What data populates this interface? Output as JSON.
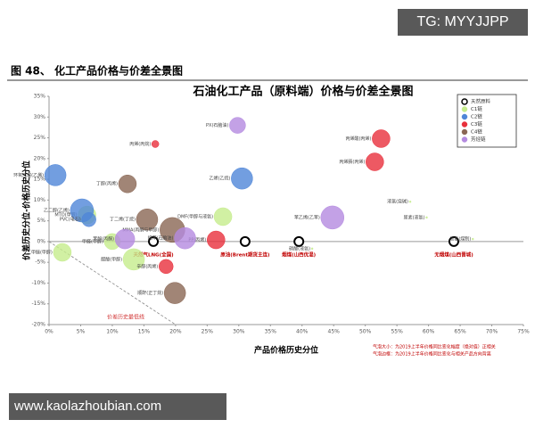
{
  "watermark_top": "TG: MYYJJPP",
  "watermark_bottom": "www.kaolazhoubian.com",
  "figure_caption": "图 48、 化工产品价格与价差全景图",
  "chart_data": {
    "type": "bubble",
    "title": "石油化工产品（原料端）价格与价差全景图",
    "x_label": "产品价格历史分位",
    "y_label": "价差历史分位-价格历史分位",
    "annotation": "价差历史最低线",
    "notes": [
      "气泡大小：为2019上半年价格同比变化幅度（绝对值）正相关",
      "气泡边框：为2019上半年价格同比变化与相关产品方向背离"
    ],
    "legend": "top-right",
    "xlim": [
      0,
      75
    ],
    "ylim": [
      -20,
      35
    ],
    "xticks": [
      {
        "value": 0,
        "label": "0%"
      },
      {
        "value": 5,
        "label": "5%"
      },
      {
        "value": 10,
        "label": "10%"
      },
      {
        "value": 15,
        "label": "15%"
      },
      {
        "value": 20,
        "label": "20%"
      },
      {
        "value": 25,
        "label": "25%"
      },
      {
        "value": 30,
        "label": "30%"
      },
      {
        "value": 35,
        "label": "35%"
      },
      {
        "value": 40,
        "label": "40%"
      },
      {
        "value": 45,
        "label": "45%"
      },
      {
        "value": 50,
        "label": "50%"
      },
      {
        "value": 55,
        "label": "55%"
      },
      {
        "value": 60,
        "label": "60%"
      },
      {
        "value": 65,
        "label": "65%"
      },
      {
        "value": 70,
        "label": "70%"
      },
      {
        "value": 75,
        "label": "75%"
      }
    ],
    "yticks": [
      {
        "value": -20,
        "label": "-20%"
      },
      {
        "value": -15,
        "label": "-15%"
      },
      {
        "value": -10,
        "label": "-10%"
      },
      {
        "value": -5,
        "label": "-5%"
      },
      {
        "value": 0,
        "label": "0%"
      },
      {
        "value": 5,
        "label": "5%"
      },
      {
        "value": 10,
        "label": "10%"
      },
      {
        "value": 15,
        "label": "15%"
      },
      {
        "value": 20,
        "label": "20%"
      },
      {
        "value": 25,
        "label": "25%"
      },
      {
        "value": 30,
        "label": "30%"
      },
      {
        "value": 35,
        "label": "35%"
      }
    ],
    "series": [
      {
        "name": "天然原料",
        "color": "#000000",
        "hollow": true,
        "x": [
          16.5,
          31,
          39.5,
          64
        ],
        "values": [
          0,
          0,
          0,
          0
        ],
        "sizes": [
          5,
          5,
          5,
          5
        ],
        "labels": [
          "天然气LNG(全国)",
          "原油(Brent期货主连)",
          "烟煤(山西优混)",
          "无烟煤(山西晋城)"
        ]
      },
      {
        "name": "C1链",
        "color": "#c5ec8c",
        "hollow": false,
        "x": [
          2.1,
          6,
          10,
          13.4,
          27.5,
          57.1,
          59.7,
          67,
          41.6
        ],
        "values": [
          -2.6,
          6.4,
          0,
          -4.3,
          6,
          9.6,
          5.8,
          0.6,
          -1.7
        ],
        "sizes": [
          10,
          10,
          9,
          12,
          10,
          1,
          1,
          1,
          1
        ],
        "labels": [
          "二甲醚(甲醇)",
          "MTO(甲醇)",
          "甲醛(甲醇)",
          "醋酸(甲醇)",
          "DMF(甲醇与液氨)",
          "液氯(烧碱)",
          "尿素(液氨)",
          "液氨(煤制)",
          "硝酸(液氨)"
        ]
      },
      {
        "name": "C2链",
        "color": "#4f86d8",
        "hollow": false,
        "x": [
          1,
          5.2,
          6.3,
          30.5
        ],
        "values": [
          16,
          7.5,
          5.3,
          15.2
        ],
        "sizes": [
          12,
          13,
          8,
          12
        ],
        "labels": [
          "环氧乙烷(乙烯)",
          "乙二醇(乙烯)",
          "PVC(电石)",
          "乙烯(乙烷)"
        ]
      },
      {
        "name": "C3链",
        "color": "#e8303c",
        "hollow": false,
        "x": [
          52.5,
          51.5,
          16.8,
          26.4,
          18.5
        ],
        "values": [
          24.8,
          19.2,
          23.5,
          0.4,
          -6
        ],
        "sizes": [
          10,
          10,
          4,
          10,
          8
        ],
        "labels": [
          "丙烯酸(丙烯)",
          "丙烯腈(丙烯)",
          "丙烯(丙烷)",
          "PP(丙烯)",
          "辛醇(丙烯)"
        ]
      },
      {
        "name": "C4链",
        "color": "#8a6654",
        "hollow": false,
        "x": [
          12.4,
          15.5,
          19.5,
          19.9
        ],
        "values": [
          13.9,
          5.3,
          2.8,
          -12.4
        ],
        "sizes": [
          10,
          12,
          14,
          12
        ],
        "labels": [
          "丁醇(丙烯)",
          "丁二烯(丁烷)",
          "MMA(丙酮与甲醇)",
          "顺酐(正丁烷)"
        ]
      },
      {
        "name": "芳烃链",
        "color": "#b48ae0",
        "hollow": false,
        "x": [
          29.8,
          44.8,
          12,
          21.5
        ],
        "values": [
          28,
          5.8,
          0.6,
          0.8
        ],
        "sizes": [
          9,
          13,
          11,
          12
        ],
        "labels": [
          "PX(石脑油)",
          "苯乙烯(乙苯)",
          "苯酚(丙酮)",
          "纯苯(石脑油)"
        ]
      }
    ]
  }
}
